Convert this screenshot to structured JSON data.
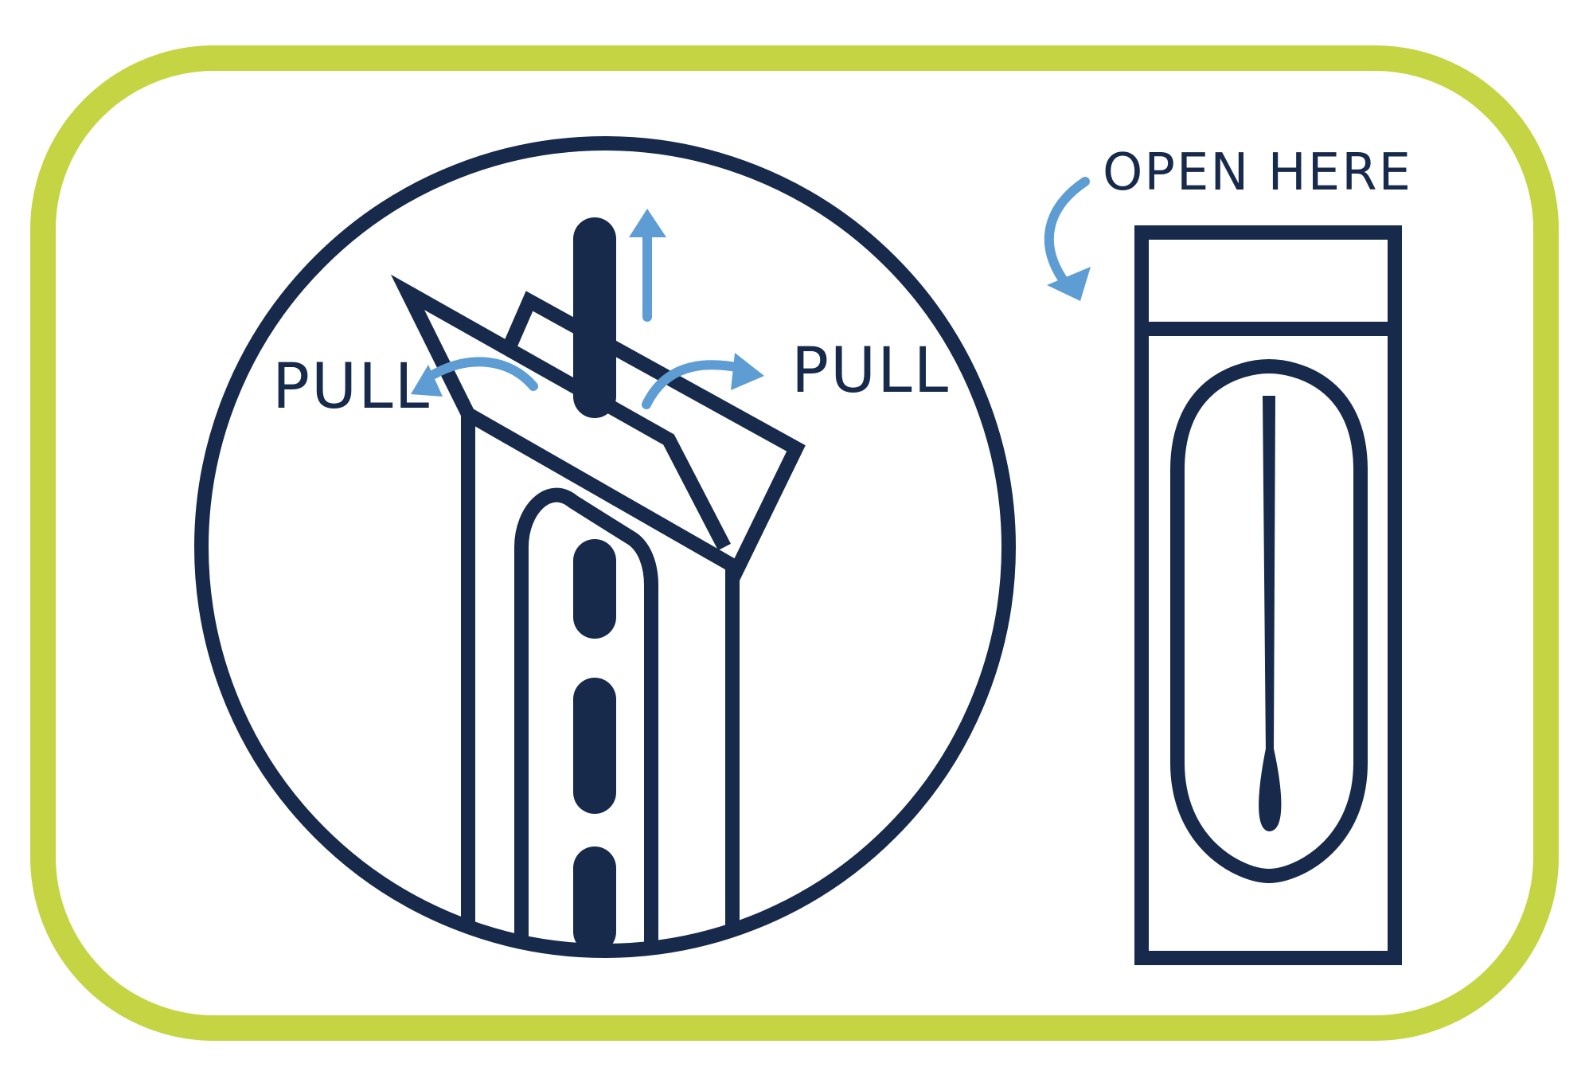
{
  "labels": {
    "pull_left": "PULL",
    "pull_right": "PULL",
    "open_here": "OPEN HERE"
  },
  "colors": {
    "frame": "#c5d443",
    "outline": "#172a4b",
    "arrow": "#5e9dd3",
    "background": "#ffffff"
  },
  "icons": {
    "swab_inset": "swab-being-pulled-from-package-icon",
    "swab_package": "sealed-swab-package-icon"
  }
}
